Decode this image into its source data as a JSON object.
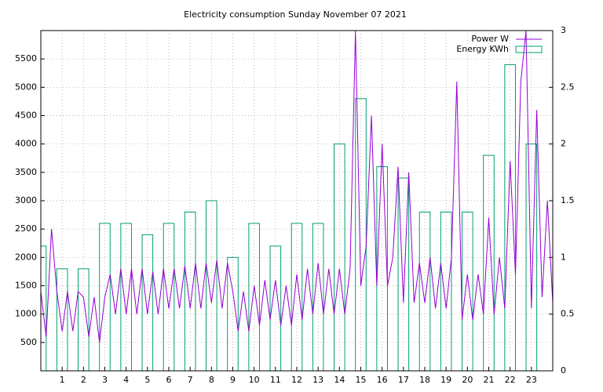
{
  "chart_data": {
    "type": "line-box",
    "title": "Electricity consumption Sunday November 07 2021",
    "xlim": [
      0,
      24
    ],
    "xticks": [
      1,
      2,
      3,
      4,
      5,
      6,
      7,
      8,
      9,
      10,
      11,
      12,
      13,
      14,
      15,
      16,
      17,
      18,
      19,
      20,
      21,
      22,
      23
    ],
    "ylim": [
      0,
      6000
    ],
    "yticks": [
      500,
      1000,
      1500,
      2000,
      2500,
      3000,
      3500,
      4000,
      4500,
      5000,
      5500
    ],
    "y2lim": [
      0,
      3
    ],
    "y2ticks": [
      0,
      0.5,
      1,
      1.5,
      2,
      2.5,
      3
    ],
    "grid": true,
    "legend": "top-right",
    "series": [
      {
        "name": "Power W",
        "color": "#9400d3",
        "style": "line",
        "x": [
          0,
          0.25,
          0.5,
          0.75,
          1,
          1.25,
          1.5,
          1.75,
          2,
          2.25,
          2.5,
          2.75,
          3,
          3.25,
          3.5,
          3.75,
          4,
          4.25,
          4.5,
          4.75,
          5,
          5.25,
          5.5,
          5.75,
          6,
          6.25,
          6.5,
          6.75,
          7,
          7.25,
          7.5,
          7.75,
          8,
          8.25,
          8.5,
          8.75,
          9,
          9.25,
          9.5,
          9.75,
          10,
          10.25,
          10.5,
          10.75,
          11,
          11.25,
          11.5,
          11.75,
          12,
          12.25,
          12.5,
          12.75,
          13,
          13.25,
          13.5,
          13.75,
          14,
          14.25,
          14.5,
          14.75,
          15,
          15.25,
          15.5,
          15.75,
          16,
          16.25,
          16.5,
          16.75,
          17,
          17.25,
          17.5,
          17.75,
          18,
          18.25,
          18.5,
          18.75,
          19,
          19.25,
          19.5,
          19.75,
          20,
          20.25,
          20.5,
          20.75,
          21,
          21.25,
          21.5,
          21.75,
          22,
          22.25,
          22.5,
          22.75,
          23,
          23.25,
          23.5,
          23.75,
          24
        ],
        "values": [
          1400,
          600,
          2500,
          1400,
          700,
          1400,
          700,
          1400,
          1300,
          600,
          1300,
          500,
          1300,
          1700,
          1000,
          1800,
          1000,
          1800,
          1000,
          1800,
          1000,
          1750,
          1000,
          1800,
          1100,
          1800,
          1100,
          1850,
          1100,
          1900,
          1100,
          1900,
          1200,
          1950,
          1100,
          1900,
          1400,
          700,
          1400,
          700,
          1500,
          800,
          1600,
          900,
          1600,
          800,
          1500,
          800,
          1700,
          900,
          1800,
          1000,
          1900,
          1000,
          1800,
          1000,
          1800,
          1000,
          1800,
          6000,
          1500,
          2200,
          4500,
          1500,
          4000,
          1500,
          2000,
          3600,
          1200,
          3500,
          1200,
          1900,
          1200,
          2000,
          1100,
          1900,
          1100,
          2000,
          5100,
          900,
          1700,
          900,
          1700,
          1000,
          2700,
          1000,
          2000,
          1100,
          3700,
          1700,
          5100,
          6000,
          1100,
          4600,
          1300,
          3000,
          1200
        ]
      },
      {
        "name": "Energy KWh",
        "color": "#009e73",
        "style": "box",
        "axis": "y2",
        "x": [
          0,
          1,
          2,
          3,
          4,
          5,
          6,
          7,
          8,
          9,
          10,
          11,
          12,
          13,
          14,
          15,
          16,
          17,
          18,
          19,
          20,
          21,
          22,
          23
        ],
        "values": [
          1.1,
          0.9,
          0.9,
          1.3,
          1.3,
          1.2,
          1.3,
          1.4,
          1.5,
          1.0,
          1.3,
          1.1,
          1.3,
          1.3,
          2.0,
          2.4,
          1.8,
          1.7,
          1.4,
          1.4,
          1.4,
          1.9,
          2.7,
          2.0
        ]
      }
    ]
  }
}
